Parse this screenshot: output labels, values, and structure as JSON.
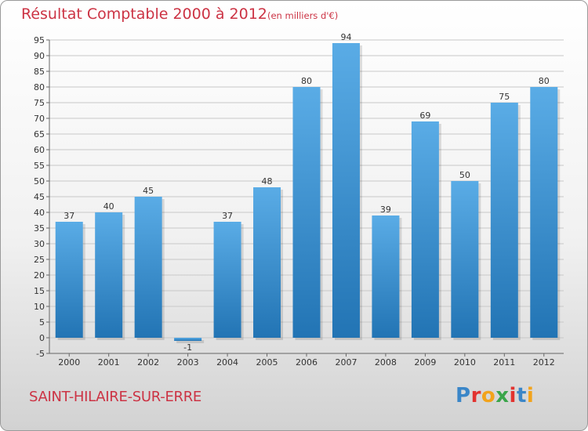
{
  "header": {
    "title": "Résultat Comptable 2000 à 2012",
    "subtitle": "(en milliers d'€)"
  },
  "footer": {
    "town": "SAINT-HILAIRE-SUR-ERRE",
    "logo_letters": [
      {
        "ch": "P",
        "color": "#3a86c8"
      },
      {
        "ch": "r",
        "color": "#e2332f"
      },
      {
        "ch": "o",
        "color": "#f2a31b"
      },
      {
        "ch": "x",
        "color": "#3aa54a"
      },
      {
        "ch": "i",
        "color": "#e2332f"
      },
      {
        "ch": "t",
        "color": "#3a86c8"
      },
      {
        "ch": "i",
        "color": "#f2a31b"
      }
    ]
  },
  "colors": {
    "bar_light": "#5aace6",
    "bar_dark": "#2274b4",
    "grid": "#c8c8c8",
    "title": "#cc3344"
  },
  "chart_data": {
    "type": "bar",
    "title": "Résultat Comptable 2000 à 2012",
    "xlabel": "",
    "ylabel": "",
    "categories": [
      "2000",
      "2001",
      "2002",
      "2003",
      "2004",
      "2005",
      "2006",
      "2007",
      "2008",
      "2009",
      "2010",
      "2011",
      "2012"
    ],
    "values": [
      37,
      40,
      45,
      -1,
      37,
      48,
      80,
      94,
      39,
      69,
      50,
      75,
      80
    ],
    "ylim": [
      -5,
      95
    ],
    "yticks": [
      -5,
      0,
      5,
      10,
      15,
      20,
      25,
      30,
      35,
      40,
      45,
      50,
      55,
      60,
      65,
      70,
      75,
      80,
      85,
      90,
      95
    ],
    "grid": true
  }
}
